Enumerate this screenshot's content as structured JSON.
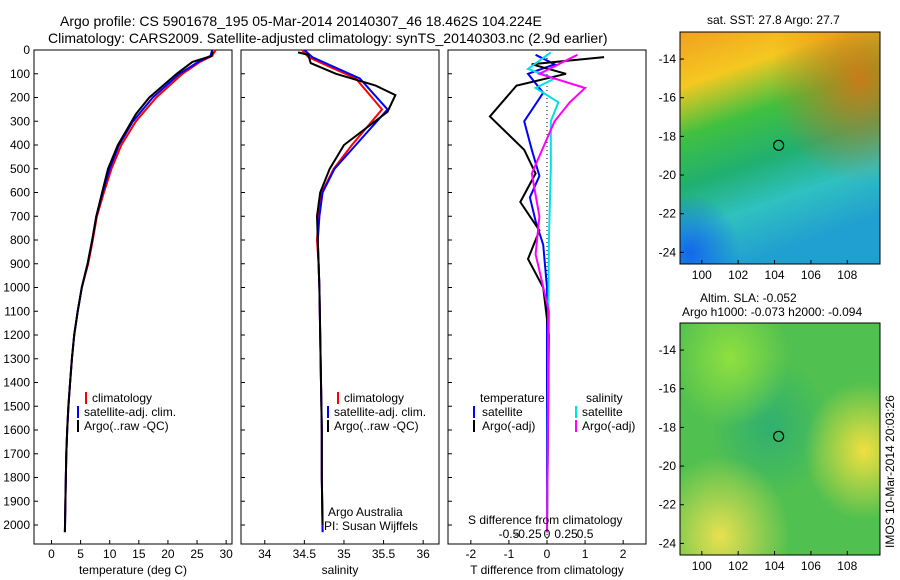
{
  "header": {
    "line1": "Argo profile: CS 5901678_195 05-Mar-2014 20140307_46 18.462S 104.224E",
    "line2": "Climatology: CARS2009. Satellite-adjusted climatology: synTS_20140303.nc (2.9d earlier)"
  },
  "footer_stamp": "IMOS 10-Mar-2014 20:03:26",
  "colors": {
    "climatology": "#ff0000",
    "satellite": "#0000ff",
    "argo": "#000000",
    "satellite_salinity": "#00e0e0",
    "argo_salinity": "#ff00ff"
  },
  "chart_data": [
    {
      "id": "temperature",
      "type": "line",
      "xlabel": "temperature (deg C)",
      "ylabel": "",
      "xlim": [
        -3,
        31
      ],
      "ylim": [
        2080,
        0
      ],
      "xticks": [
        0,
        5,
        10,
        15,
        20,
        25,
        30
      ],
      "yticks": [
        0,
        100,
        200,
        300,
        400,
        500,
        600,
        700,
        800,
        900,
        1000,
        1100,
        1200,
        1300,
        1400,
        1500,
        1600,
        1700,
        1800,
        1900,
        2000
      ],
      "legend": [
        "climatology",
        "satellite-adj. clim.",
        "Argo(..raw -QC)"
      ],
      "legend_position": "lower-center",
      "series": [
        {
          "name": "climatology",
          "color_key": "climatology",
          "x": [
            28.2,
            27.6,
            25.5,
            22.5,
            18.0,
            14.5,
            12.0,
            10.3,
            9.0,
            7.8,
            7.1,
            6.3,
            5.2,
            4.5,
            3.9,
            3.5,
            3.2,
            2.9,
            2.7,
            2.55,
            2.4,
            2.3
          ],
          "y": [
            0,
            25,
            50,
            100,
            200,
            300,
            400,
            500,
            600,
            700,
            800,
            900,
            1000,
            1100,
            1200,
            1300,
            1400,
            1500,
            1600,
            1700,
            1900,
            2030
          ]
        },
        {
          "name": "satellite-adj. clim.",
          "color_key": "satellite",
          "x": [
            27.6,
            27.3,
            25.2,
            22.0,
            17.4,
            14.0,
            11.6,
            10.0,
            8.8,
            7.7,
            7.0,
            6.2,
            5.2,
            4.5,
            3.9,
            3.5,
            3.2,
            2.9,
            2.7,
            2.55,
            2.4,
            2.3
          ],
          "y": [
            0,
            25,
            50,
            100,
            200,
            300,
            400,
            500,
            600,
            700,
            800,
            900,
            1000,
            1100,
            1200,
            1300,
            1400,
            1500,
            1600,
            1700,
            1900,
            2030
          ]
        },
        {
          "name": "Argo(..raw -QC)",
          "color_key": "argo",
          "x": [
            27.7,
            27.5,
            24.2,
            21.5,
            16.8,
            14.5,
            11.4,
            9.7,
            8.7,
            7.7,
            7.0,
            6.2,
            5.2,
            4.5,
            3.9,
            3.5,
            3.2,
            2.9,
            2.7,
            2.55,
            2.4,
            2.3
          ],
          "y": [
            5,
            25,
            50,
            100,
            200,
            270,
            400,
            500,
            600,
            700,
            800,
            900,
            1000,
            1100,
            1200,
            1300,
            1400,
            1500,
            1600,
            1700,
            1900,
            2030
          ]
        }
      ]
    },
    {
      "id": "salinity",
      "type": "line",
      "xlabel": "salinity",
      "xlim": [
        33.7,
        36.2
      ],
      "ylim": [
        2080,
        0
      ],
      "xticks": [
        34,
        34.5,
        35,
        35.5,
        36
      ],
      "legend": [
        "climatology",
        "satellite-adj. clim.",
        "Argo(..raw -QC)"
      ],
      "legend_position": "lower-right",
      "annotations": [
        "Argo Australia",
        "PI: Susan Wijffels"
      ],
      "series": [
        {
          "name": "climatology",
          "color_key": "climatology",
          "x": [
            34.47,
            34.55,
            34.75,
            35.15,
            35.48,
            35.1,
            34.87,
            34.72,
            34.68,
            34.66,
            34.68,
            34.69,
            34.7,
            34.71,
            34.72,
            34.72,
            34.73
          ],
          "y": [
            0,
            30,
            60,
            120,
            250,
            400,
            500,
            600,
            700,
            800,
            900,
            1000,
            1200,
            1400,
            1600,
            1800,
            2030
          ]
        },
        {
          "name": "satellite-adj. clim.",
          "color_key": "satellite",
          "x": [
            34.5,
            34.6,
            34.8,
            35.2,
            35.55,
            35.15,
            34.88,
            34.73,
            34.69,
            34.67,
            34.68,
            34.69,
            34.7,
            34.71,
            34.72,
            34.72,
            34.73
          ],
          "y": [
            0,
            30,
            60,
            120,
            250,
            400,
            500,
            600,
            700,
            800,
            900,
            1000,
            1200,
            1400,
            1600,
            1800,
            2030
          ]
        },
        {
          "name": "Argo(..raw -QC)",
          "color_key": "argo",
          "x": [
            34.42,
            34.55,
            34.58,
            34.9,
            35.4,
            35.65,
            35.55,
            35.0,
            34.82,
            34.7,
            34.66,
            34.67,
            34.69,
            34.7,
            34.71,
            34.72,
            34.72,
            34.73
          ],
          "y": [
            10,
            20,
            55,
            100,
            150,
            190,
            260,
            400,
            500,
            600,
            700,
            800,
            1000,
            1200,
            1400,
            1600,
            1800,
            2000
          ]
        }
      ]
    },
    {
      "id": "difference",
      "type": "line",
      "xlabel": "T difference from climatology",
      "xlabel2": "S difference from climatology",
      "xlim": [
        -2.6,
        2.6
      ],
      "ylim": [
        2080,
        0
      ],
      "xticks_T": [
        -2,
        -1,
        0,
        1,
        2
      ],
      "xticks_S_labels": [
        "-0.5",
        "-0.25",
        "0",
        "0.25",
        "0.5"
      ],
      "legend_temperature_title": "temperature",
      "legend_salinity_title": "salinity",
      "legend": [
        "satellite",
        "Argo(-adj)",
        "satellite",
        "Argo(-adj)"
      ],
      "series": [
        {
          "name": "satellite",
          "group": "temperature",
          "color_key": "satellite",
          "x": [
            -0.3,
            0.2,
            -0.5,
            -0.1,
            -0.6,
            -0.4,
            -0.2,
            -0.45,
            -0.3,
            -0.1,
            0,
            0
          ],
          "y": [
            20,
            60,
            100,
            180,
            300,
            420,
            530,
            620,
            720,
            820,
            1000,
            2030
          ]
        },
        {
          "name": "Argo(-adj)",
          "group": "temperature",
          "color_key": "argo",
          "x": [
            1.5,
            -0.4,
            0.5,
            -0.8,
            -1.5,
            -0.6,
            -0.3,
            -0.7,
            -0.2,
            -0.5,
            -0.1,
            0.05,
            0
          ],
          "y": [
            30,
            60,
            100,
            150,
            280,
            420,
            520,
            640,
            760,
            880,
            1000,
            1200,
            2030
          ]
        },
        {
          "name": "satellite",
          "group": "salinity",
          "color_key": "satellite_salinity",
          "x": [
            0.1,
            -0.5,
            0.2,
            -0.3,
            0.3,
            0.1,
            0.1,
            0.05,
            0
          ],
          "y": [
            10,
            80,
            120,
            160,
            220,
            300,
            500,
            800,
            2030
          ]
        },
        {
          "name": "Argo(-adj)",
          "group": "salinity",
          "color_key": "argo_salinity",
          "x": [
            0.8,
            -0.2,
            1.0,
            0.6,
            0.2,
            -0.4,
            -0.2,
            -0.3,
            0.05,
            0
          ],
          "y": [
            20,
            100,
            160,
            220,
            300,
            520,
            700,
            860,
            1100,
            2030
          ]
        }
      ]
    },
    {
      "id": "sst_map",
      "type": "heatmap",
      "title": "sat. SST: 27.8  Argo: 27.7",
      "xticks": [
        100,
        102,
        104,
        106,
        108
      ],
      "yticks": [
        -14,
        -16,
        -18,
        -20,
        -22,
        -24
      ],
      "xlim": [
        98.8,
        109.8
      ],
      "ylim": [
        -24.6,
        -12.6
      ],
      "marker": {
        "lon": 104.224,
        "lat": -18.462
      }
    },
    {
      "id": "sla_map",
      "type": "heatmap",
      "title": "Altim. SLA: -0.052",
      "subtitle": "Argo h1000: -0.073  h2000: -0.094",
      "xticks": [
        100,
        102,
        104,
        106,
        108
      ],
      "yticks": [
        -14,
        -16,
        -18,
        -20,
        -22,
        -24
      ],
      "xlim": [
        98.8,
        109.8
      ],
      "ylim": [
        -24.6,
        -12.6
      ],
      "marker": {
        "lon": 104.224,
        "lat": -18.462
      }
    }
  ]
}
